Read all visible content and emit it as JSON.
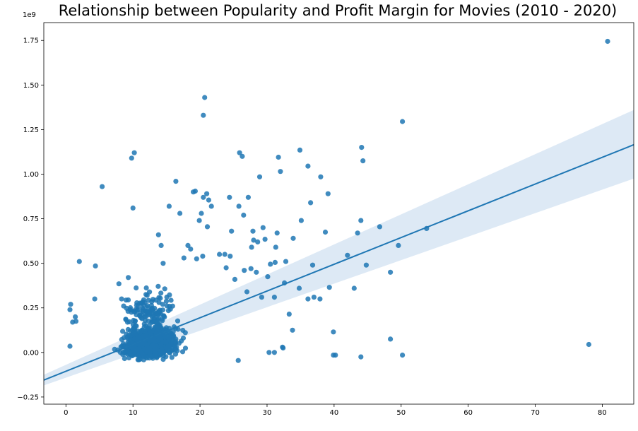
{
  "chart_data": {
    "type": "scatter",
    "title": "Relationship between Popularity and Profit Margin for Movies (2010 - 2020)",
    "xlabel": "",
    "ylabel": "",
    "y_offset_label": "1e9",
    "xlim": [
      -3.3,
      84.7
    ],
    "ylim": [
      -0.29,
      1.85
    ],
    "x_ticks": [
      0,
      10,
      20,
      30,
      40,
      50,
      60,
      70,
      80
    ],
    "x_tick_labels": [
      "0",
      "10",
      "20",
      "30",
      "40",
      "50",
      "60",
      "70",
      "80"
    ],
    "y_ticks": [
      -0.25,
      0.0,
      0.25,
      0.5,
      0.75,
      1.0,
      1.25,
      1.5,
      1.75
    ],
    "y_tick_labels": [
      "−0.25",
      "0.00",
      "0.25",
      "0.50",
      "0.75",
      "1.00",
      "1.25",
      "1.50",
      "1.75"
    ],
    "grid": false,
    "colors": {
      "points": "#1f77b4",
      "line": "#1f77b4",
      "band": "#c6dbef"
    },
    "regression": {
      "x": [
        -3.3,
        84.7
      ],
      "y": [
        -0.155,
        1.165
      ],
      "ci_upper": [
        -0.125,
        1.36
      ],
      "ci_lower": [
        -0.185,
        0.975
      ]
    },
    "points": [
      [
        80.8,
        1.745
      ],
      [
        78.0,
        0.045
      ],
      [
        53.8,
        0.695
      ],
      [
        50.2,
        1.295
      ],
      [
        50.2,
        -0.015
      ],
      [
        49.6,
        0.6
      ],
      [
        48.4,
        0.45
      ],
      [
        48.4,
        0.075
      ],
      [
        46.8,
        0.705
      ],
      [
        44.8,
        0.49
      ],
      [
        44.3,
        1.075
      ],
      [
        44.1,
        1.15
      ],
      [
        44.0,
        0.74
      ],
      [
        44.0,
        -0.025
      ],
      [
        43.5,
        0.67
      ],
      [
        43.0,
        0.36
      ],
      [
        42.0,
        0.545
      ],
      [
        40.2,
        -0.015
      ],
      [
        39.9,
        -0.015
      ],
      [
        39.9,
        0.115
      ],
      [
        39.3,
        0.365
      ],
      [
        39.1,
        0.89
      ],
      [
        38.7,
        0.675
      ],
      [
        38.0,
        0.985
      ],
      [
        37.9,
        0.3
      ],
      [
        37.0,
        0.31
      ],
      [
        36.8,
        0.49
      ],
      [
        36.5,
        0.84
      ],
      [
        36.1,
        1.045
      ],
      [
        36.1,
        0.3
      ],
      [
        35.1,
        0.74
      ],
      [
        34.9,
        1.135
      ],
      [
        34.8,
        0.36
      ],
      [
        33.9,
        0.64
      ],
      [
        33.8,
        0.125
      ],
      [
        33.3,
        0.215
      ],
      [
        32.8,
        0.51
      ],
      [
        32.6,
        0.39
      ],
      [
        32.4,
        0.025
      ],
      [
        32.3,
        0.03
      ],
      [
        32.0,
        1.015
      ],
      [
        31.7,
        1.095
      ],
      [
        31.5,
        0.67
      ],
      [
        31.3,
        0.59
      ],
      [
        31.2,
        0.505
      ],
      [
        31.1,
        0.31
      ],
      [
        31.1,
        0.0
      ],
      [
        30.5,
        0.495
      ],
      [
        30.3,
        0.0
      ],
      [
        30.1,
        0.425
      ],
      [
        29.7,
        0.635
      ],
      [
        29.4,
        0.7
      ],
      [
        29.2,
        0.31
      ],
      [
        28.9,
        0.985
      ],
      [
        28.6,
        0.62
      ],
      [
        28.4,
        0.45
      ],
      [
        28.0,
        0.63
      ],
      [
        27.9,
        0.68
      ],
      [
        27.7,
        0.59
      ],
      [
        27.6,
        0.47
      ],
      [
        27.2,
        0.87
      ],
      [
        27.0,
        0.34
      ],
      [
        26.6,
        0.46
      ],
      [
        26.5,
        0.77
      ],
      [
        26.3,
        1.1
      ],
      [
        25.9,
        1.12
      ],
      [
        25.8,
        0.82
      ],
      [
        25.7,
        -0.045
      ],
      [
        25.2,
        0.41
      ],
      [
        24.7,
        0.68
      ],
      [
        24.5,
        0.54
      ],
      [
        24.4,
        0.87
      ],
      [
        23.9,
        0.475
      ],
      [
        23.7,
        0.55
      ],
      [
        22.9,
        0.55
      ],
      [
        21.7,
        0.82
      ],
      [
        21.3,
        0.855
      ],
      [
        21.1,
        0.705
      ],
      [
        21.0,
        0.89
      ],
      [
        20.7,
        1.43
      ],
      [
        20.5,
        1.33
      ],
      [
        20.5,
        0.87
      ],
      [
        20.4,
        0.54
      ],
      [
        20.2,
        0.78
      ],
      [
        19.9,
        0.74
      ],
      [
        19.5,
        0.525
      ],
      [
        19.3,
        0.905
      ],
      [
        19.0,
        0.9
      ],
      [
        18.6,
        0.58
      ],
      [
        18.2,
        0.6
      ],
      [
        17.6,
        0.53
      ],
      [
        17.0,
        0.78
      ],
      [
        16.4,
        0.96
      ],
      [
        15.4,
        0.82
      ],
      [
        14.5,
        0.5
      ],
      [
        14.2,
        0.6
      ],
      [
        13.8,
        0.66
      ],
      [
        10.2,
        1.12
      ],
      [
        10.0,
        0.81
      ],
      [
        9.8,
        1.09
      ],
      [
        9.3,
        0.42
      ],
      [
        8.3,
        0.3
      ],
      [
        7.9,
        0.385
      ],
      [
        5.4,
        0.93
      ],
      [
        4.4,
        0.485
      ],
      [
        4.3,
        0.3
      ],
      [
        2.0,
        0.51
      ],
      [
        1.5,
        0.175
      ],
      [
        1.4,
        0.2
      ],
      [
        1.0,
        0.17
      ],
      [
        0.7,
        0.27
      ],
      [
        0.6,
        0.24
      ],
      [
        0.6,
        0.035
      ]
    ]
  }
}
